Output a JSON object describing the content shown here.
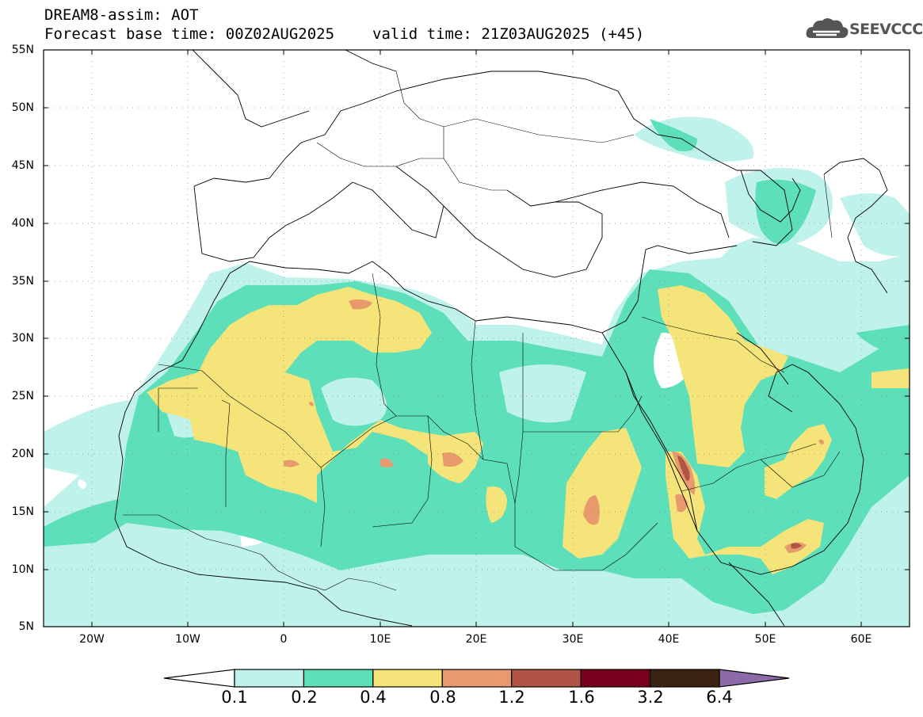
{
  "header": {
    "title": "DREAM8-assim: AOT",
    "base_time": "Forecast base time: 00Z02AUG2025",
    "valid_time": "valid time: 21Z03AUG2025 (+45)"
  },
  "logo": {
    "text": "SEEVCCC",
    "icon": "cloud-logo-icon"
  },
  "colors": {
    "c01": "#bff2ea",
    "c02": "#5ddfb9",
    "c04": "#f4e47a",
    "c08": "#e89a6d",
    "c12": "#b05445",
    "c16": "#780021",
    "c32": "#3b2412",
    "c64": "#8d6aa8"
  },
  "chart_data": {
    "type": "heatmap",
    "lat_labels": [
      "55N",
      "50N",
      "45N",
      "40N",
      "35N",
      "30N",
      "25N",
      "20N",
      "15N",
      "10N",
      "5N"
    ],
    "lon_labels": [
      "20W",
      "10W",
      "0",
      "10E",
      "20E",
      "30E",
      "40E",
      "50E",
      "60E"
    ],
    "lat_range": [
      5,
      55
    ],
    "lon_range": [
      -25,
      65
    ],
    "colorbar": {
      "labels": [
        "0.1",
        "0.2",
        "0.4",
        "0.8",
        "1.2",
        "1.6",
        "3.2",
        "6.4"
      ],
      "colors": [
        "#bff2ea",
        "#5ddfb9",
        "#f4e47a",
        "#e89a6d",
        "#b05445",
        "#780021",
        "#3b2412"
      ]
    }
  }
}
